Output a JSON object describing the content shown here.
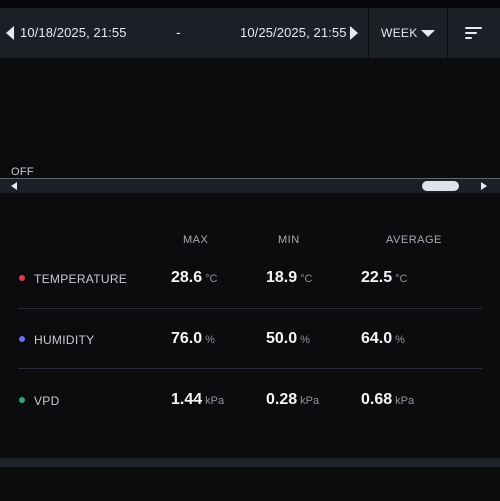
{
  "header": {
    "date_start": "10/18/2025, 21:55",
    "date_separator": "-",
    "date_end": "10/25/2025, 21:55",
    "period": "WEEK"
  },
  "chart": {
    "off_label": "OFF"
  },
  "stats": {
    "columns": [
      "MAX",
      "MIN",
      "AVERAGE"
    ],
    "rows": [
      {
        "label": "TEMPERATURE",
        "color": "#e53945",
        "max": "28.6",
        "min": "18.9",
        "avg": "22.5",
        "unit": "°C"
      },
      {
        "label": "HUMIDITY",
        "color": "#6f6df0",
        "max": "76.0",
        "min": "50.0",
        "avg": "64.0",
        "unit": "%"
      },
      {
        "label": "VPD",
        "color": "#2fa876",
        "max": "1.44",
        "min": "0.28",
        "avg": "0.68",
        "unit": "kPa"
      }
    ]
  },
  "icons": {
    "prev": "chevron-left-icon",
    "next": "chevron-right-icon",
    "period_dropdown": "caret-down-icon",
    "sort": "sort-icon"
  }
}
